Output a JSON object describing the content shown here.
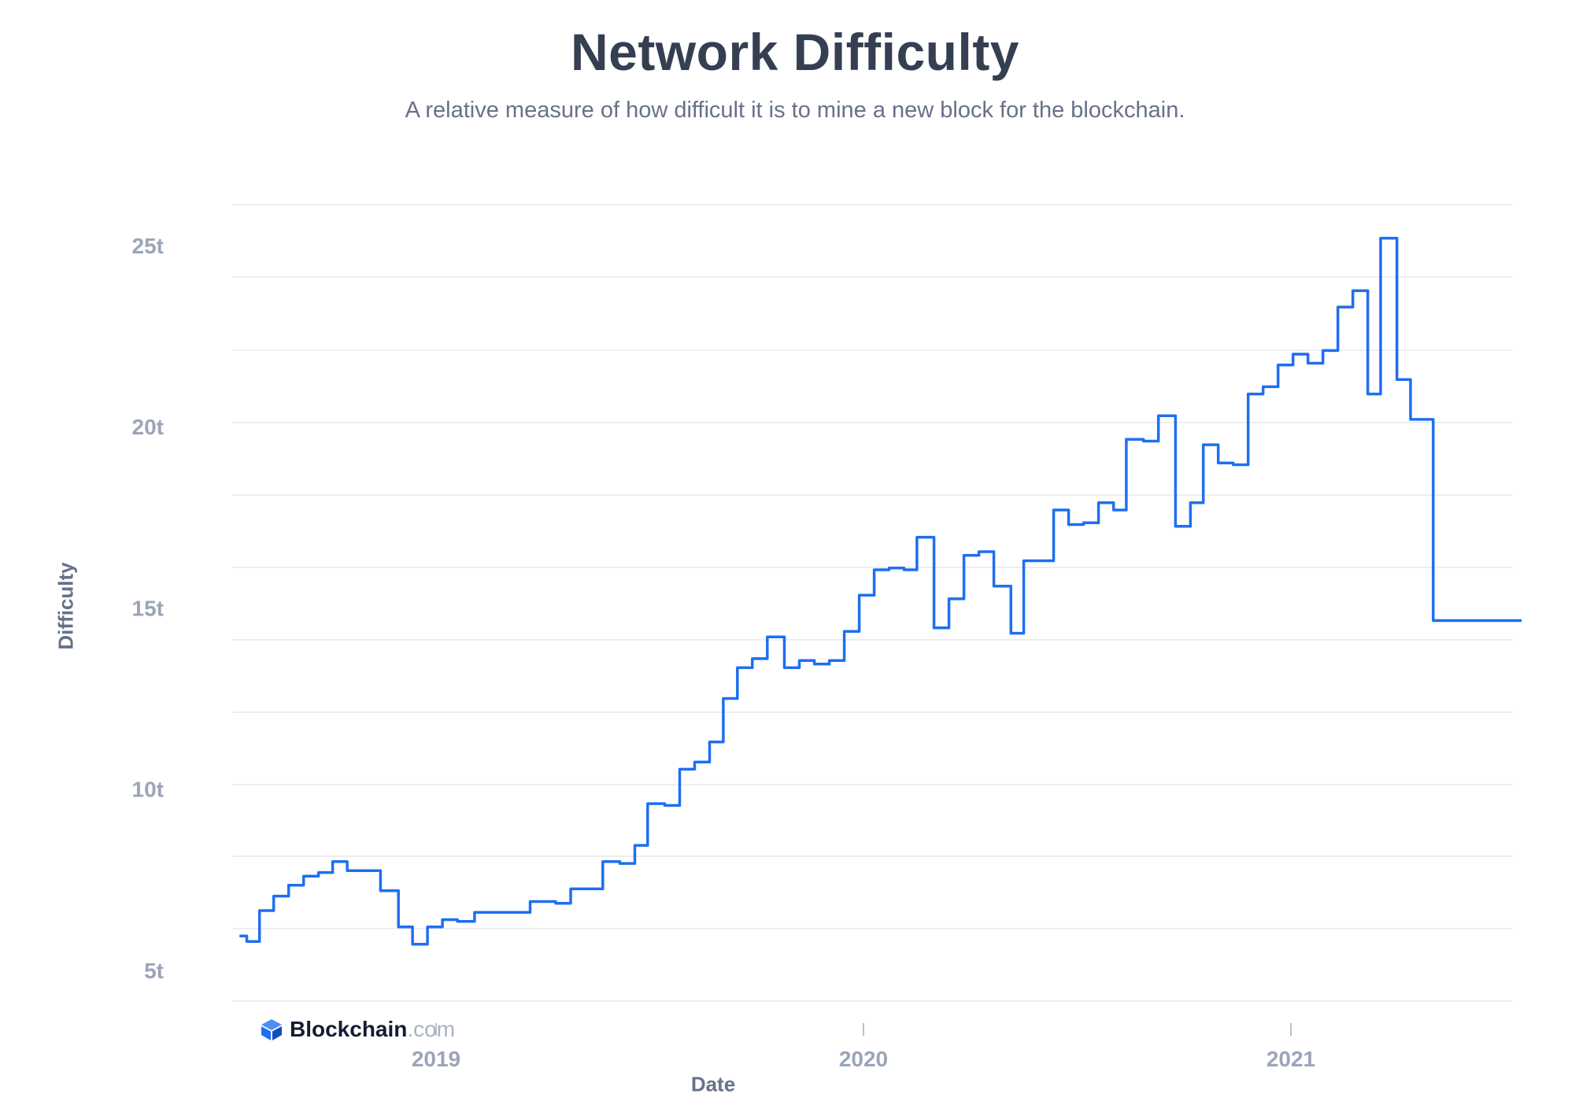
{
  "chart_data": {
    "type": "line",
    "title": "Network Difficulty",
    "subtitle": "A relative measure of how difficult it is to mine a new block for the blockchain.",
    "xlabel": "Date",
    "ylabel": "Difficulty",
    "brand": {
      "name": "Blockchain",
      "suffix": ".com"
    },
    "colors": {
      "line": "#1e6ff1",
      "grid": "#e5e8ee",
      "tick": "#9ba5b8"
    },
    "y_ticks": [
      {
        "value": 5,
        "label": "5t"
      },
      {
        "value": 10,
        "label": "10t"
      },
      {
        "value": 15,
        "label": "15t"
      },
      {
        "value": 20,
        "label": "20t"
      },
      {
        "value": 25,
        "label": "25t"
      }
    ],
    "x_ticks": [
      {
        "value": 2019.0,
        "label": "2019"
      },
      {
        "value": 2020.0,
        "label": "2020"
      },
      {
        "value": 2021.0,
        "label": "2021"
      }
    ],
    "xlim": [
      2018.54,
      2021.54
    ],
    "ylim": [
      4.1,
      26.1
    ],
    "series": [
      {
        "name": "Network Difficulty",
        "points": [
          [
            2018.54,
            5.95
          ],
          [
            2018.557,
            5.95
          ],
          [
            2018.557,
            5.8
          ],
          [
            2018.587,
            5.8
          ],
          [
            2018.587,
            6.65
          ],
          [
            2018.62,
            6.65
          ],
          [
            2018.62,
            7.05
          ],
          [
            2018.655,
            7.05
          ],
          [
            2018.655,
            7.35
          ],
          [
            2018.69,
            7.35
          ],
          [
            2018.69,
            7.6
          ],
          [
            2018.725,
            7.6
          ],
          [
            2018.725,
            7.7
          ],
          [
            2018.758,
            7.7
          ],
          [
            2018.758,
            8.0
          ],
          [
            2018.792,
            8.0
          ],
          [
            2018.792,
            7.75
          ],
          [
            2018.87,
            7.75
          ],
          [
            2018.87,
            7.2
          ],
          [
            2018.912,
            7.2
          ],
          [
            2018.912,
            6.2
          ],
          [
            2018.945,
            6.2
          ],
          [
            2018.945,
            5.72
          ],
          [
            2018.98,
            5.72
          ],
          [
            2018.98,
            6.2
          ],
          [
            2019.015,
            6.2
          ],
          [
            2019.015,
            6.4
          ],
          [
            2019.05,
            6.4
          ],
          [
            2019.05,
            6.35
          ],
          [
            2019.09,
            6.35
          ],
          [
            2019.09,
            6.6
          ],
          [
            2019.22,
            6.6
          ],
          [
            2019.22,
            6.9
          ],
          [
            2019.28,
            6.9
          ],
          [
            2019.28,
            6.85
          ],
          [
            2019.315,
            6.85
          ],
          [
            2019.315,
            7.25
          ],
          [
            2019.39,
            7.25
          ],
          [
            2019.39,
            8.0
          ],
          [
            2019.43,
            8.0
          ],
          [
            2019.43,
            7.95
          ],
          [
            2019.465,
            7.95
          ],
          [
            2019.465,
            8.45
          ],
          [
            2019.495,
            8.45
          ],
          [
            2019.495,
            9.6
          ],
          [
            2019.535,
            9.6
          ],
          [
            2019.535,
            9.55
          ],
          [
            2019.57,
            9.55
          ],
          [
            2019.57,
            10.55
          ],
          [
            2019.605,
            10.55
          ],
          [
            2019.605,
            10.75
          ],
          [
            2019.64,
            10.75
          ],
          [
            2019.64,
            11.3
          ],
          [
            2019.672,
            11.3
          ],
          [
            2019.672,
            12.5
          ],
          [
            2019.705,
            12.5
          ],
          [
            2019.705,
            13.35
          ],
          [
            2019.74,
            13.35
          ],
          [
            2019.74,
            13.6
          ],
          [
            2019.775,
            13.6
          ],
          [
            2019.775,
            14.2
          ],
          [
            2019.815,
            14.2
          ],
          [
            2019.815,
            13.35
          ],
          [
            2019.85,
            13.35
          ],
          [
            2019.85,
            13.55
          ],
          [
            2019.885,
            13.55
          ],
          [
            2019.885,
            13.45
          ],
          [
            2019.92,
            13.45
          ],
          [
            2019.92,
            13.55
          ],
          [
            2019.955,
            13.55
          ],
          [
            2019.955,
            14.35
          ],
          [
            2019.99,
            14.35
          ],
          [
            2019.99,
            15.35
          ],
          [
            2020.025,
            15.35
          ],
          [
            2020.025,
            16.05
          ],
          [
            2020.06,
            16.05
          ],
          [
            2020.06,
            16.1
          ],
          [
            2020.095,
            16.1
          ],
          [
            2020.095,
            16.05
          ],
          [
            2020.125,
            16.05
          ],
          [
            2020.125,
            16.95
          ],
          [
            2020.165,
            16.95
          ],
          [
            2020.165,
            14.45
          ],
          [
            2020.2,
            14.45
          ],
          [
            2020.2,
            15.25
          ],
          [
            2020.235,
            15.25
          ],
          [
            2020.235,
            16.45
          ],
          [
            2020.27,
            16.45
          ],
          [
            2020.27,
            16.55
          ],
          [
            2020.305,
            16.55
          ],
          [
            2020.305,
            15.6
          ],
          [
            2020.345,
            15.6
          ],
          [
            2020.345,
            14.3
          ],
          [
            2020.375,
            14.3
          ],
          [
            2020.375,
            16.3
          ],
          [
            2020.445,
            16.3
          ],
          [
            2020.445,
            17.7
          ],
          [
            2020.48,
            17.7
          ],
          [
            2020.48,
            17.3
          ],
          [
            2020.515,
            17.3
          ],
          [
            2020.515,
            17.35
          ],
          [
            2020.55,
            17.35
          ],
          [
            2020.55,
            17.9
          ],
          [
            2020.585,
            17.9
          ],
          [
            2020.585,
            17.7
          ],
          [
            2020.615,
            17.7
          ],
          [
            2020.615,
            19.65
          ],
          [
            2020.655,
            19.65
          ],
          [
            2020.655,
            19.6
          ],
          [
            2020.69,
            19.6
          ],
          [
            2020.69,
            20.3
          ],
          [
            2020.73,
            20.3
          ],
          [
            2020.73,
            17.25
          ],
          [
            2020.765,
            17.25
          ],
          [
            2020.765,
            17.9
          ],
          [
            2020.795,
            17.9
          ],
          [
            2020.795,
            19.5
          ],
          [
            2020.83,
            19.5
          ],
          [
            2020.83,
            19.0
          ],
          [
            2020.865,
            19.0
          ],
          [
            2020.865,
            18.95
          ],
          [
            2020.9,
            18.95
          ],
          [
            2020.9,
            20.9
          ],
          [
            2020.935,
            20.9
          ],
          [
            2020.935,
            21.1
          ],
          [
            2020.97,
            21.1
          ],
          [
            2020.97,
            21.7
          ],
          [
            2021.005,
            21.7
          ],
          [
            2021.005,
            22.0
          ],
          [
            2021.04,
            22.0
          ],
          [
            2021.04,
            21.75
          ],
          [
            2021.075,
            21.75
          ],
          [
            2021.075,
            22.1
          ],
          [
            2021.11,
            22.1
          ],
          [
            2021.11,
            23.3
          ],
          [
            2021.145,
            23.3
          ],
          [
            2021.145,
            23.75
          ],
          [
            2021.18,
            23.75
          ],
          [
            2021.18,
            20.9
          ],
          [
            2021.21,
            20.9
          ],
          [
            2021.21,
            25.2
          ],
          [
            2021.248,
            25.2
          ],
          [
            2021.248,
            21.3
          ],
          [
            2021.28,
            21.3
          ],
          [
            2021.28,
            20.2
          ],
          [
            2021.333,
            20.2
          ],
          [
            2021.333,
            14.65
          ],
          [
            2021.35,
            14.65
          ],
          [
            2021.54,
            14.65
          ]
        ]
      }
    ]
  }
}
